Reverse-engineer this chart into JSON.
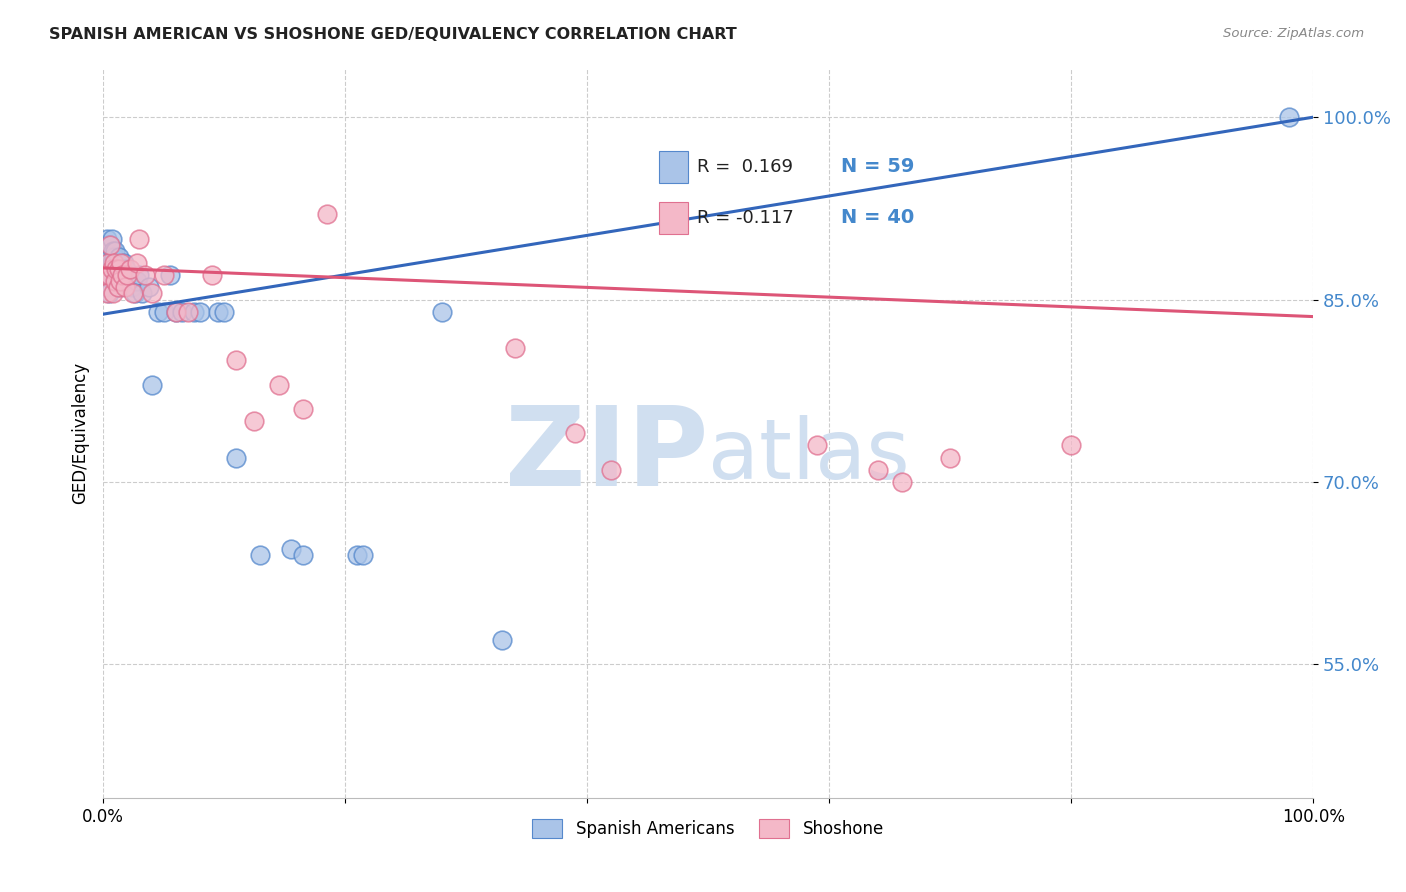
{
  "title": "SPANISH AMERICAN VS SHOSHONE GED/EQUIVALENCY CORRELATION CHART",
  "source": "Source: ZipAtlas.com",
  "ylabel": "GED/Equivalency",
  "legend_label_blue": "Spanish Americans",
  "legend_label_pink": "Shoshone",
  "blue_fill_color": "#aac4e8",
  "blue_edge_color": "#5588cc",
  "pink_fill_color": "#f4b8c8",
  "pink_edge_color": "#e07090",
  "blue_line_color": "#3366bb",
  "pink_line_color": "#dd5577",
  "tick_color": "#4488cc",
  "watermark_color": "#d0dff0",
  "ytick_labels": [
    "55.0%",
    "70.0%",
    "85.0%",
    "100.0%"
  ],
  "ytick_values": [
    0.55,
    0.7,
    0.85,
    1.0
  ],
  "xlim": [
    0.0,
    1.0
  ],
  "ylim": [
    0.44,
    1.04
  ],
  "blue_line_y_start": 0.838,
  "blue_line_y_end": 1.0,
  "pink_line_y_start": 0.876,
  "pink_line_y_end": 0.836,
  "blue_scatter_x": [
    0.002,
    0.003,
    0.003,
    0.004,
    0.004,
    0.005,
    0.005,
    0.006,
    0.006,
    0.007,
    0.007,
    0.007,
    0.008,
    0.008,
    0.009,
    0.009,
    0.01,
    0.01,
    0.011,
    0.011,
    0.012,
    0.012,
    0.013,
    0.013,
    0.014,
    0.014,
    0.015,
    0.015,
    0.016,
    0.017,
    0.018,
    0.019,
    0.02,
    0.022,
    0.024,
    0.026,
    0.028,
    0.03,
    0.032,
    0.038,
    0.04,
    0.045,
    0.05,
    0.055,
    0.06,
    0.065,
    0.075,
    0.08,
    0.095,
    0.1,
    0.11,
    0.13,
    0.155,
    0.165,
    0.21,
    0.215,
    0.28,
    0.33,
    0.98
  ],
  "blue_scatter_y": [
    0.86,
    0.88,
    0.9,
    0.87,
    0.895,
    0.855,
    0.87,
    0.885,
    0.895,
    0.875,
    0.88,
    0.9,
    0.865,
    0.89,
    0.875,
    0.885,
    0.87,
    0.89,
    0.865,
    0.875,
    0.86,
    0.88,
    0.87,
    0.885,
    0.875,
    0.86,
    0.865,
    0.875,
    0.87,
    0.88,
    0.865,
    0.875,
    0.87,
    0.865,
    0.86,
    0.855,
    0.865,
    0.87,
    0.855,
    0.86,
    0.78,
    0.84,
    0.84,
    0.87,
    0.84,
    0.84,
    0.84,
    0.84,
    0.84,
    0.84,
    0.72,
    0.64,
    0.645,
    0.64,
    0.64,
    0.64,
    0.84,
    0.57,
    1.0
  ],
  "pink_scatter_x": [
    0.002,
    0.003,
    0.004,
    0.005,
    0.006,
    0.007,
    0.008,
    0.009,
    0.01,
    0.011,
    0.012,
    0.013,
    0.014,
    0.015,
    0.016,
    0.018,
    0.02,
    0.022,
    0.025,
    0.028,
    0.03,
    0.035,
    0.04,
    0.05,
    0.06,
    0.07,
    0.09,
    0.11,
    0.125,
    0.145,
    0.165,
    0.185,
    0.34,
    0.39,
    0.42,
    0.59,
    0.64,
    0.66,
    0.7,
    0.8
  ],
  "pink_scatter_y": [
    0.87,
    0.855,
    0.88,
    0.87,
    0.895,
    0.875,
    0.855,
    0.88,
    0.865,
    0.875,
    0.86,
    0.875,
    0.865,
    0.88,
    0.87,
    0.86,
    0.87,
    0.875,
    0.855,
    0.88,
    0.9,
    0.87,
    0.855,
    0.87,
    0.84,
    0.84,
    0.87,
    0.8,
    0.75,
    0.78,
    0.76,
    0.92,
    0.81,
    0.74,
    0.71,
    0.73,
    0.71,
    0.7,
    0.72,
    0.73
  ]
}
